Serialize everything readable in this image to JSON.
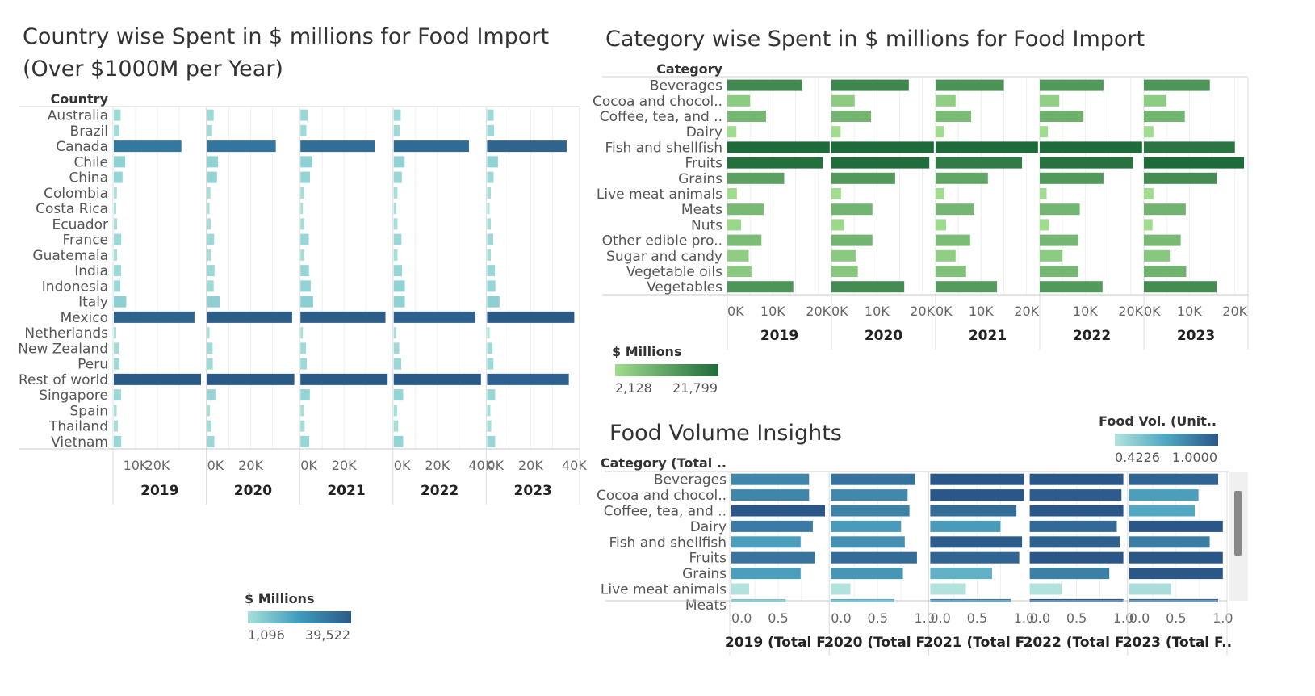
{
  "colors": {
    "country_low": "#a6e0da",
    "country_mid": "#3d9bbd",
    "country_high": "#2c5a87",
    "category_low": "#9fdc8d",
    "category_high": "#1e6b3a",
    "volume_low": "#b2e2dc",
    "volume_mid": "#4fa6c2",
    "volume_high": "#2a5688",
    "scrollbar": "#888888"
  },
  "country_chart": {
    "title_line1": "Country wise Spent in $ millions  for Food Import",
    "title_line2": "(Over $1000M per Year)",
    "row_header": "Country",
    "legend_title": "$ Millions",
    "legend_min": "1,096",
    "legend_max": "39,522",
    "panels": [
      {
        "year": "2019",
        "ticks": [
          "10K",
          "20K"
        ]
      },
      {
        "year": "2020",
        "ticks": [
          "0K",
          "20K"
        ]
      },
      {
        "year": "2021",
        "ticks": [
          "0K",
          "20K"
        ]
      },
      {
        "year": "2022",
        "ticks": [
          "0K",
          "20K",
          "40K"
        ]
      },
      {
        "year": "2023",
        "ticks": [
          "0K",
          "20K",
          "40K"
        ]
      }
    ]
  },
  "category_chart": {
    "title": "Category wise Spent in $ millions  for Food Import",
    "row_header": "Category",
    "legend_title": "$ Millions",
    "legend_min": "2,128",
    "legend_max": "21,799",
    "panels": [
      {
        "year": "2019",
        "ticks": [
          "0K",
          "10K",
          "20K"
        ]
      },
      {
        "year": "2020",
        "ticks": [
          "0K",
          "10K",
          "20K"
        ]
      },
      {
        "year": "2021",
        "ticks": [
          "0K",
          "10K",
          "20K"
        ]
      },
      {
        "year": "2022",
        "ticks": [
          "10K",
          "20K"
        ]
      },
      {
        "year": "2023",
        "ticks": [
          "0K",
          "10K",
          "20K"
        ]
      }
    ]
  },
  "volume_chart": {
    "title": "Food Volume Insights",
    "row_header": "Category (Total ..",
    "legend_title": "Food Vol. (Unit..",
    "legend_min": "0.4226",
    "legend_max": "1.0000",
    "panels": [
      {
        "year": "2019 (Total F..",
        "ticks": [
          "0.0",
          "0.5"
        ]
      },
      {
        "year": "2020 (Total F..",
        "ticks": [
          "0.0",
          "0.5",
          "1.0"
        ]
      },
      {
        "year": "2021 (Total F..",
        "ticks": [
          "0.0",
          "0.5",
          "1.0"
        ]
      },
      {
        "year": "2022 (Total F..",
        "ticks": [
          "0.0",
          "0.5",
          "1.0"
        ]
      },
      {
        "year": "2023 (Total F..",
        "ticks": [
          "0.0",
          "0.5",
          "1.0"
        ]
      }
    ]
  },
  "chart_data": [
    {
      "type": "bar",
      "orientation": "horizontal",
      "title": "Country wise Spent in $ millions  for Food Import (Over $1000M per Year)",
      "xlabel": "",
      "ylabel": "Country",
      "xlim": [
        0,
        40000
      ],
      "categories": [
        "Australia",
        "Brazil",
        "Canada",
        "Chile",
        "China",
        "Colombia",
        "Costa Rica",
        "Ecuador",
        "France",
        "Guatemala",
        "India",
        "Indonesia",
        "Italy",
        "Mexico",
        "Netherlands",
        "New Zealand",
        "Peru",
        "Rest of world",
        "Singapore",
        "Spain",
        "Thailand",
        "Vietnam"
      ],
      "series": [
        {
          "name": "2019",
          "values": [
            3100,
            2400,
            31000,
            5200,
            4000,
            1400,
            1100,
            1500,
            3400,
            1500,
            3300,
            3000,
            5700,
            37000,
            1100,
            2200,
            2500,
            40000,
            3300,
            1300,
            1800,
            3400
          ]
        },
        {
          "name": "2020",
          "values": [
            3000,
            2300,
            31500,
            5000,
            4500,
            1500,
            1100,
            1600,
            3200,
            1600,
            3400,
            3000,
            5700,
            39000,
            1100,
            2500,
            2600,
            40000,
            3800,
            1300,
            1900,
            3300
          ]
        },
        {
          "name": "2021",
          "values": [
            3300,
            2700,
            34000,
            5500,
            4400,
            1700,
            1100,
            1700,
            3800,
            1700,
            3900,
            4700,
            5800,
            39000,
            1100,
            2500,
            2900,
            40000,
            4300,
            1400,
            1900,
            4000
          ]
        },
        {
          "name": "2022",
          "values": [
            3200,
            2700,
            34500,
            5000,
            3700,
            1700,
            1100,
            1700,
            3500,
            1700,
            3800,
            5100,
            5100,
            37500,
            1100,
            2500,
            3400,
            40000,
            4300,
            1500,
            2000,
            4300
          ]
        },
        {
          "name": "2023",
          "values": [
            3000,
            3200,
            36500,
            5000,
            3000,
            1700,
            1100,
            1700,
            2800,
            1700,
            3600,
            3800,
            5700,
            40000,
            1100,
            2500,
            2900,
            37500,
            3700,
            1500,
            1900,
            3700
          ]
        }
      ],
      "color_scale": {
        "title": "$ Millions",
        "min": 1096,
        "max": 39522
      },
      "legend_position": "bottom"
    },
    {
      "type": "bar",
      "orientation": "horizontal",
      "title": "Category wise Spent in $ millions  for Food Import",
      "xlabel": "",
      "ylabel": "Category",
      "xlim": [
        0,
        22000
      ],
      "categories": [
        "Beverages",
        "Cocoa and chocol..",
        "Coffee, tea, and ..",
        "Dairy",
        "Fish and shellfish",
        "Fruits",
        "Grains",
        "Live meat animals",
        "Meats",
        "Nuts",
        "Other edible pro..",
        "Sugar and candy",
        "Vegetable oils",
        "Vegetables"
      ],
      "series": [
        {
          "name": "2019",
          "values": [
            16500,
            5000,
            8500,
            2000,
            22500,
            21000,
            12500,
            2100,
            8000,
            3000,
            7500,
            4700,
            5300,
            14500
          ]
        },
        {
          "name": "2020",
          "values": [
            17000,
            5100,
            8700,
            2000,
            22500,
            21500,
            14000,
            2100,
            9000,
            2800,
            9000,
            5300,
            5800,
            16000
          ]
        },
        {
          "name": "2021",
          "values": [
            15000,
            4400,
            7800,
            1800,
            22500,
            19000,
            11500,
            1800,
            8500,
            2300,
            7600,
            4400,
            6700,
            13500
          ]
        },
        {
          "name": "2022",
          "values": [
            14000,
            4300,
            9600,
            1800,
            22500,
            20500,
            14000,
            1500,
            8800,
            2000,
            8500,
            5000,
            8500,
            13800
          ]
        },
        {
          "name": "2023",
          "values": [
            14500,
            4800,
            9000,
            2100,
            20000,
            22000,
            16000,
            2100,
            9200,
            1900,
            8100,
            5700,
            9300,
            16000
          ]
        }
      ],
      "color_scale": {
        "title": "$ Millions",
        "min": 2128,
        "max": 21799
      },
      "legend_position": "bottom-left"
    },
    {
      "type": "bar",
      "orientation": "horizontal",
      "title": "Food Volume Insights",
      "xlabel": "",
      "ylabel": "Category (Total ..",
      "xlim": [
        0,
        1.0
      ],
      "categories": [
        "Beverages",
        "Cocoa and chocol..",
        "Coffee, tea, and ..",
        "Dairy",
        "Fish and shellfish",
        "Fruits",
        "Grains",
        "Live meat animals",
        "Meats"
      ],
      "series": [
        {
          "name": "2019 (Total F..",
          "values": [
            0.83,
            0.83,
            1.0,
            0.87,
            0.74,
            0.89,
            0.74,
            0.19,
            0.58
          ]
        },
        {
          "name": "2020 (Total F..",
          "values": [
            0.9,
            0.82,
            0.84,
            0.75,
            0.79,
            0.92,
            0.77,
            0.21,
            0.68
          ]
        },
        {
          "name": "2021 (Total F..",
          "values": [
            1.0,
            1.0,
            0.92,
            0.75,
            0.98,
            0.95,
            0.66,
            0.38,
            0.86
          ]
        },
        {
          "name": "2022 (Total F..",
          "values": [
            1.0,
            0.98,
            1.0,
            0.93,
            0.96,
            1.0,
            0.85,
            0.34,
            1.0
          ]
        },
        {
          "name": "2023 (Total F..",
          "values": [
            0.95,
            0.74,
            0.7,
            1.0,
            0.86,
            1.0,
            1.0,
            0.45,
            0.95
          ]
        }
      ],
      "color_scale": {
        "title": "Food Vol. (Unit..",
        "min": 0.4226,
        "max": 1.0
      },
      "legend_position": "top-right"
    }
  ]
}
